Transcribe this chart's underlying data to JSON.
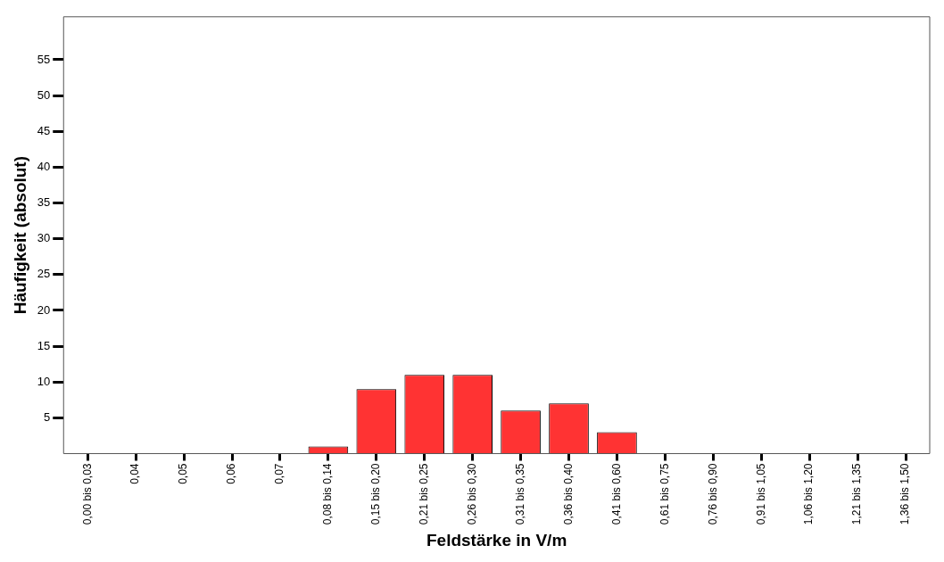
{
  "chart_data": {
    "type": "bar",
    "xlabel": "Feldstärke in V/m",
    "ylabel": "Häufigkeit (absolut)",
    "categories": [
      "0,00 bis 0,03",
      "0,04",
      "0,05",
      "0,06",
      "0,07",
      "0,08 bis 0,14",
      "0,15 bis 0,20",
      "0,21 bis 0,25",
      "0,26 bis 0,30",
      "0,31 bis 0,35",
      "0,36 bis 0,40",
      "0,41 bis 0,60",
      "0,61 bis 0,75",
      "0,76 bis 0,90",
      "0,91 bis 1,05",
      "1,06 bis 1,20",
      "1,21 bis 1,35",
      "1,36 bis 1,50"
    ],
    "values": [
      0,
      0,
      0,
      0,
      0,
      1,
      9,
      11,
      11,
      6,
      7,
      3,
      0,
      0,
      0,
      0,
      0,
      0
    ],
    "color": "#ff3333",
    "ylim": [
      0,
      61
    ],
    "yticks": [
      5,
      10,
      15,
      20,
      25,
      30,
      35,
      40,
      45,
      50,
      55
    ],
    "grid": false,
    "legend": false
  }
}
